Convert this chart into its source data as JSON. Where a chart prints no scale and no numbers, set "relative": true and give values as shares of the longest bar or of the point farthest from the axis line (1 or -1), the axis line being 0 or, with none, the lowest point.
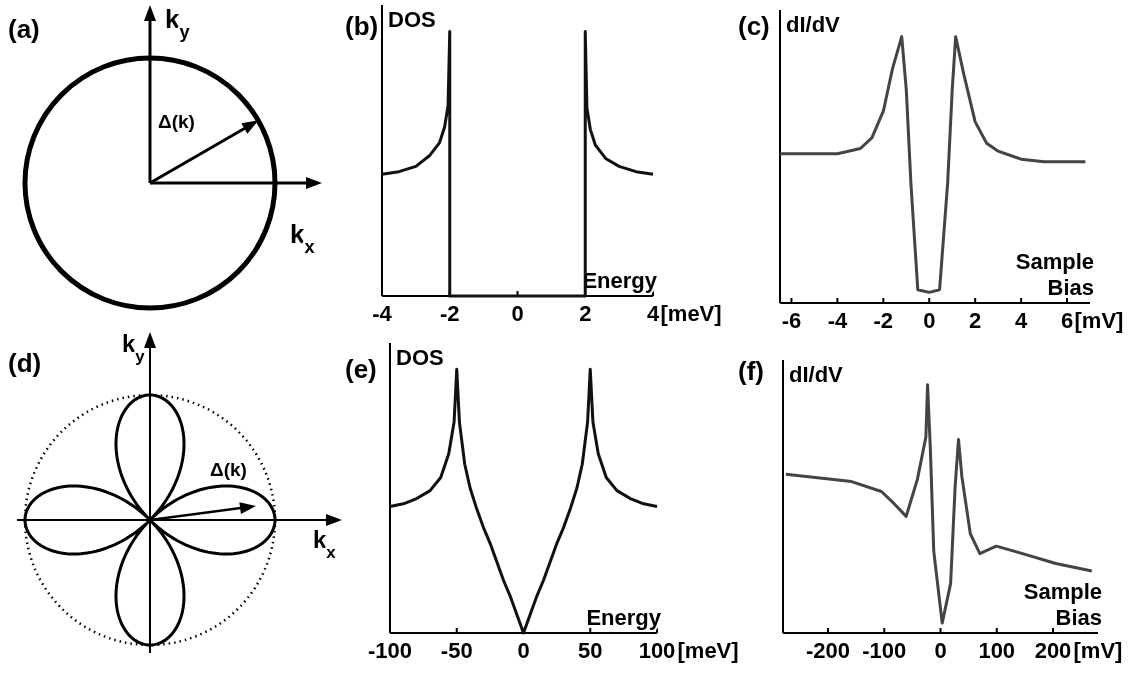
{
  "chart_data": [
    {
      "type": "other",
      "title": "(a)",
      "annotations": [
        "k$_{y}$",
        "k$_{x}$",
        "Δ(k)"
      ]
    },
    {
      "type": "line",
      "title": "(b)",
      "ylabel": "DOS",
      "xlabel": "Energy",
      "relative": true,
      "xlim": [
        -4,
        4
      ],
      "xticks": [
        -4,
        -2,
        0,
        2,
        4
      ],
      "annotations": [
        "[meV]"
      ],
      "series": [
        {
          "color": "#111111",
          "x": [
            -4,
            -3.5,
            -3,
            -2.6,
            -2.3,
            -2.15,
            -2.05,
            -2,
            -2,
            2,
            2,
            2.05,
            2.15,
            2.3,
            2.6,
            3,
            3.5,
            4
          ],
          "values": [
            0.46,
            0.47,
            0.49,
            0.53,
            0.58,
            0.64,
            0.72,
            1,
            0,
            0,
            1,
            0.71,
            0.63,
            0.57,
            0.52,
            0.49,
            0.47,
            0.46
          ]
        }
      ]
    },
    {
      "type": "line",
      "title": "(c)",
      "ylabel": "dI/dV",
      "xlabel": "Sample Bias",
      "relative": true,
      "xlim": [
        -6.5,
        7
      ],
      "xticks": [
        -6,
        -4,
        -2,
        0,
        2,
        4,
        6
      ],
      "annotations": [
        "[mV]"
      ],
      "series": [
        {
          "color": "#444444",
          "x": [
            -6.5,
            -4,
            -3,
            -2.5,
            -2,
            -1.6,
            -1.2,
            -1,
            -0.8,
            -0.5,
            0,
            0.45,
            0.8,
            1,
            1.15,
            1.5,
            2,
            2.5,
            3,
            4,
            5,
            6.8
          ],
          "values": [
            0.56,
            0.56,
            0.58,
            0.62,
            0.72,
            0.88,
            1,
            0.8,
            0.45,
            0.05,
            0.04,
            0.05,
            0.45,
            0.8,
            1,
            0.86,
            0.68,
            0.6,
            0.57,
            0.54,
            0.53,
            0.53
          ]
        }
      ]
    },
    {
      "type": "other",
      "title": "(d)",
      "annotations": [
        "k$_{y}$",
        "k$_{x}$",
        "Δ(k)"
      ]
    },
    {
      "type": "line",
      "title": "(e)",
      "ylabel": "DOS",
      "xlabel": "Energy",
      "relative": true,
      "xlim": [
        -100,
        100
      ],
      "xticks": [
        -100,
        -50,
        0,
        50,
        100
      ],
      "annotations": [
        "[meV]"
      ],
      "series": [
        {
          "color": "#111111",
          "x": [
            -100,
            -90,
            -80,
            -70,
            -62,
            -56,
            -52,
            -50,
            -48,
            -44,
            -40,
            -35,
            -30,
            -25,
            -20,
            -15,
            -10,
            -5,
            0,
            5,
            10,
            15,
            20,
            25,
            30,
            35,
            40,
            44,
            48,
            50,
            52,
            56,
            62,
            70,
            80,
            90,
            100
          ],
          "values": [
            0.48,
            0.49,
            0.51,
            0.54,
            0.59,
            0.68,
            0.8,
            1,
            0.8,
            0.64,
            0.55,
            0.47,
            0.4,
            0.34,
            0.27,
            0.2,
            0.14,
            0.07,
            0,
            0.07,
            0.14,
            0.2,
            0.27,
            0.34,
            0.4,
            0.47,
            0.55,
            0.64,
            0.8,
            1,
            0.8,
            0.68,
            0.59,
            0.54,
            0.51,
            0.49,
            0.48
          ]
        }
      ]
    },
    {
      "type": "line",
      "title": "(f)",
      "ylabel": "dI/dV",
      "xlabel": "Sample Bias",
      "relative": true,
      "xlim": [
        -280,
        280
      ],
      "xticks": [
        -200,
        -100,
        0,
        100,
        200
      ],
      "annotations": [
        "[mV]"
      ],
      "series": [
        {
          "color": "#444444",
          "x": [
            -275,
            -158,
            -105,
            -82,
            -61,
            -41,
            -26,
            -23,
            -18,
            -12,
            3,
            18,
            26,
            32,
            38,
            53,
            70,
            99,
            146,
            205,
            269
          ],
          "values": [
            0.64,
            0.61,
            0.57,
            0.52,
            0.47,
            0.62,
            0.79,
            1,
            0.74,
            0.33,
            0.04,
            0.2,
            0.59,
            0.78,
            0.63,
            0.4,
            0.32,
            0.35,
            0.32,
            0.28,
            0.25
          ]
        }
      ]
    }
  ]
}
